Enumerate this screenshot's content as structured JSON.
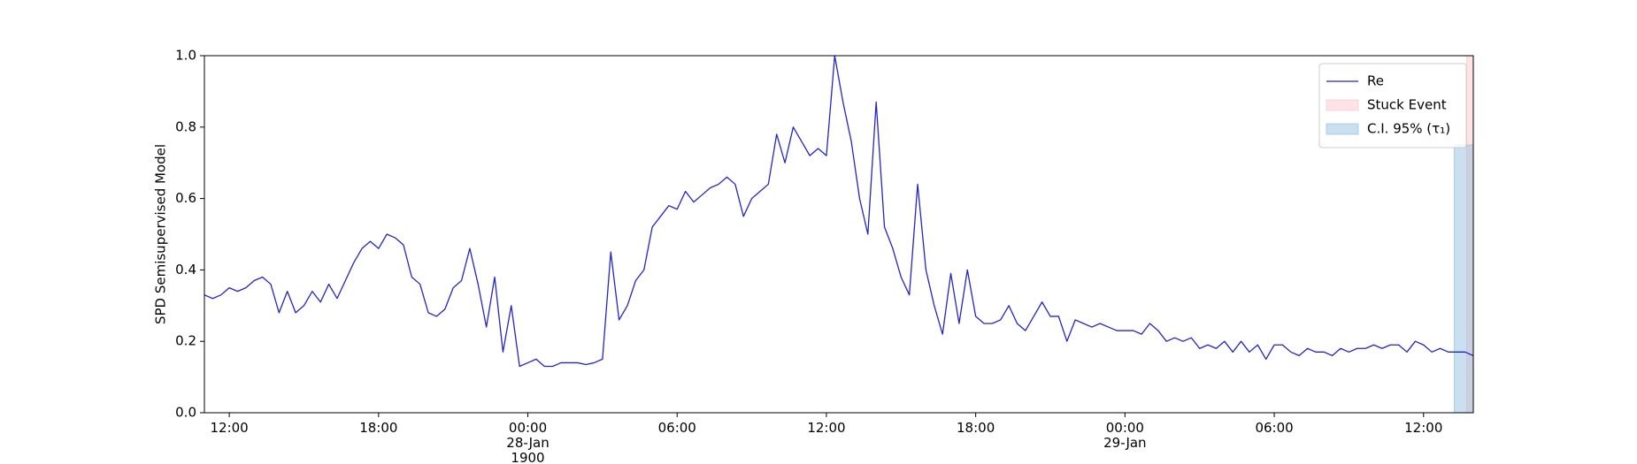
{
  "chart_data": {
    "type": "line",
    "y_label": "SPD Semisupervised Model",
    "x": [
      "1900-01-27 11:00",
      "1900-01-27 11:20",
      "1900-01-27 11:40",
      "1900-01-27 12:00",
      "1900-01-27 12:20",
      "1900-01-27 12:40",
      "1900-01-27 13:00",
      "1900-01-27 13:20",
      "1900-01-27 13:40",
      "1900-01-27 14:00",
      "1900-01-27 14:20",
      "1900-01-27 14:40",
      "1900-01-27 15:00",
      "1900-01-27 15:20",
      "1900-01-27 15:40",
      "1900-01-27 16:00",
      "1900-01-27 16:20",
      "1900-01-27 16:40",
      "1900-01-27 17:00",
      "1900-01-27 17:20",
      "1900-01-27 17:40",
      "1900-01-27 18:00",
      "1900-01-27 18:20",
      "1900-01-27 18:40",
      "1900-01-27 19:00",
      "1900-01-27 19:20",
      "1900-01-27 19:40",
      "1900-01-27 20:00",
      "1900-01-27 20:20",
      "1900-01-27 20:40",
      "1900-01-27 21:00",
      "1900-01-27 21:20",
      "1900-01-27 21:40",
      "1900-01-27 22:00",
      "1900-01-27 22:20",
      "1900-01-27 22:40",
      "1900-01-27 23:00",
      "1900-01-27 23:20",
      "1900-01-27 23:40",
      "1900-01-28 00:00",
      "1900-01-28 00:20",
      "1900-01-28 00:40",
      "1900-01-28 01:00",
      "1900-01-28 01:20",
      "1900-01-28 01:40",
      "1900-01-28 02:00",
      "1900-01-28 02:20",
      "1900-01-28 02:40",
      "1900-01-28 03:00",
      "1900-01-28 03:20",
      "1900-01-28 03:40",
      "1900-01-28 04:00",
      "1900-01-28 04:20",
      "1900-01-28 04:40",
      "1900-01-28 05:00",
      "1900-01-28 05:20",
      "1900-01-28 05:40",
      "1900-01-28 06:00",
      "1900-01-28 06:20",
      "1900-01-28 06:40",
      "1900-01-28 07:00",
      "1900-01-28 07:20",
      "1900-01-28 07:40",
      "1900-01-28 08:00",
      "1900-01-28 08:20",
      "1900-01-28 08:40",
      "1900-01-28 09:00",
      "1900-01-28 09:20",
      "1900-01-28 09:40",
      "1900-01-28 10:00",
      "1900-01-28 10:20",
      "1900-01-28 10:40",
      "1900-01-28 11:00",
      "1900-01-28 11:20",
      "1900-01-28 11:40",
      "1900-01-28 12:00",
      "1900-01-28 12:20",
      "1900-01-28 12:40",
      "1900-01-28 13:00",
      "1900-01-28 13:20",
      "1900-01-28 13:40",
      "1900-01-28 14:00",
      "1900-01-28 14:20",
      "1900-01-28 14:40",
      "1900-01-28 15:00",
      "1900-01-28 15:20",
      "1900-01-28 15:40",
      "1900-01-28 16:00",
      "1900-01-28 16:20",
      "1900-01-28 16:40",
      "1900-01-28 17:00",
      "1900-01-28 17:20",
      "1900-01-28 17:40",
      "1900-01-28 18:00",
      "1900-01-28 18:20",
      "1900-01-28 18:40",
      "1900-01-28 19:00",
      "1900-01-28 19:20",
      "1900-01-28 19:40",
      "1900-01-28 20:00",
      "1900-01-28 20:20",
      "1900-01-28 20:40",
      "1900-01-28 21:00",
      "1900-01-28 21:20",
      "1900-01-28 21:40",
      "1900-01-28 22:00",
      "1900-01-28 22:20",
      "1900-01-28 22:40",
      "1900-01-28 23:00",
      "1900-01-28 23:20",
      "1900-01-28 23:40",
      "1900-01-29 00:00",
      "1900-01-29 00:20",
      "1900-01-29 00:40",
      "1900-01-29 01:00",
      "1900-01-29 01:20",
      "1900-01-29 01:40",
      "1900-01-29 02:00",
      "1900-01-29 02:20",
      "1900-01-29 02:40",
      "1900-01-29 03:00",
      "1900-01-29 03:20",
      "1900-01-29 03:40",
      "1900-01-29 04:00",
      "1900-01-29 04:20",
      "1900-01-29 04:40",
      "1900-01-29 05:00",
      "1900-01-29 05:20",
      "1900-01-29 05:40",
      "1900-01-29 06:00",
      "1900-01-29 06:20",
      "1900-01-29 06:40",
      "1900-01-29 07:00",
      "1900-01-29 07:20",
      "1900-01-29 07:40",
      "1900-01-29 08:00",
      "1900-01-29 08:20",
      "1900-01-29 08:40",
      "1900-01-29 09:00",
      "1900-01-29 09:20",
      "1900-01-29 09:40",
      "1900-01-29 10:00",
      "1900-01-29 10:20",
      "1900-01-29 10:40",
      "1900-01-29 11:00",
      "1900-01-29 11:20",
      "1900-01-29 11:40",
      "1900-01-29 12:00",
      "1900-01-29 12:20",
      "1900-01-29 12:40",
      "1900-01-29 13:00",
      "1900-01-29 13:20",
      "1900-01-29 13:40",
      "1900-01-29 14:00"
    ],
    "series": [
      {
        "name": "Re",
        "color": "#2424c8",
        "values": [
          0.33,
          0.32,
          0.33,
          0.35,
          0.34,
          0.35,
          0.37,
          0.38,
          0.36,
          0.28,
          0.34,
          0.28,
          0.3,
          0.34,
          0.31,
          0.36,
          0.32,
          0.37,
          0.42,
          0.46,
          0.48,
          0.46,
          0.5,
          0.49,
          0.47,
          0.38,
          0.36,
          0.28,
          0.27,
          0.29,
          0.35,
          0.37,
          0.46,
          0.36,
          0.24,
          0.38,
          0.17,
          0.3,
          0.13,
          0.14,
          0.15,
          0.13,
          0.13,
          0.14,
          0.14,
          0.14,
          0.135,
          0.14,
          0.15,
          0.45,
          0.26,
          0.3,
          0.37,
          0.4,
          0.52,
          0.55,
          0.58,
          0.57,
          0.62,
          0.59,
          0.61,
          0.63,
          0.64,
          0.66,
          0.64,
          0.55,
          0.6,
          0.62,
          0.64,
          0.78,
          0.7,
          0.8,
          0.76,
          0.72,
          0.74,
          0.72,
          1.0,
          0.87,
          0.76,
          0.6,
          0.5,
          0.87,
          0.52,
          0.46,
          0.38,
          0.33,
          0.64,
          0.4,
          0.3,
          0.22,
          0.39,
          0.25,
          0.4,
          0.27,
          0.25,
          0.25,
          0.26,
          0.3,
          0.25,
          0.23,
          0.27,
          0.31,
          0.27,
          0.27,
          0.2,
          0.26,
          0.25,
          0.24,
          0.25,
          0.24,
          0.23,
          0.23,
          0.23,
          0.22,
          0.25,
          0.23,
          0.2,
          0.21,
          0.2,
          0.21,
          0.18,
          0.19,
          0.18,
          0.2,
          0.17,
          0.2,
          0.17,
          0.19,
          0.15,
          0.19,
          0.19,
          0.17,
          0.16,
          0.18,
          0.17,
          0.17,
          0.16,
          0.18,
          0.17,
          0.18,
          0.18,
          0.19,
          0.18,
          0.19,
          0.19,
          0.17,
          0.2,
          0.19,
          0.17,
          0.18,
          0.17,
          0.17,
          0.17,
          0.16
        ]
      }
    ],
    "spans": [
      {
        "name": "Stuck Event",
        "color": "#ffc0c8",
        "x": [
          "1900-01-29 13:44",
          "1900-01-29 14:00"
        ],
        "y": [
          0,
          1
        ]
      },
      {
        "name": "C.I. 95% (τ₁)",
        "color": "#8ab8dc",
        "x": [
          "1900-01-29 13:14",
          "1900-01-29 14:00"
        ],
        "y": [
          0,
          0.75
        ]
      }
    ],
    "xlim": [
      "1900-01-27 11:00",
      "1900-01-29 14:00"
    ],
    "xticks": [
      {
        "value": "1900-01-27 12:00",
        "label": "12:00"
      },
      {
        "value": "1900-01-27 18:00",
        "label": "18:00"
      },
      {
        "value": "1900-01-28 00:00",
        "label": "00:00\n28-Jan\n1900"
      },
      {
        "value": "1900-01-28 06:00",
        "label": "06:00"
      },
      {
        "value": "1900-01-28 12:00",
        "label": "12:00"
      },
      {
        "value": "1900-01-28 18:00",
        "label": "18:00"
      },
      {
        "value": "1900-01-29 00:00",
        "label": "00:00\n29-Jan"
      },
      {
        "value": "1900-01-29 06:00",
        "label": "06:00"
      },
      {
        "value": "1900-01-29 12:00",
        "label": "12:00"
      }
    ],
    "ylim": [
      0,
      1
    ],
    "yticks": [
      {
        "value": 0,
        "label": "0.0"
      },
      0.2,
      0.4,
      0.6,
      0.8,
      {
        "value": 1,
        "label": "1.0"
      }
    ],
    "grid": false,
    "legend": "upper right"
  }
}
